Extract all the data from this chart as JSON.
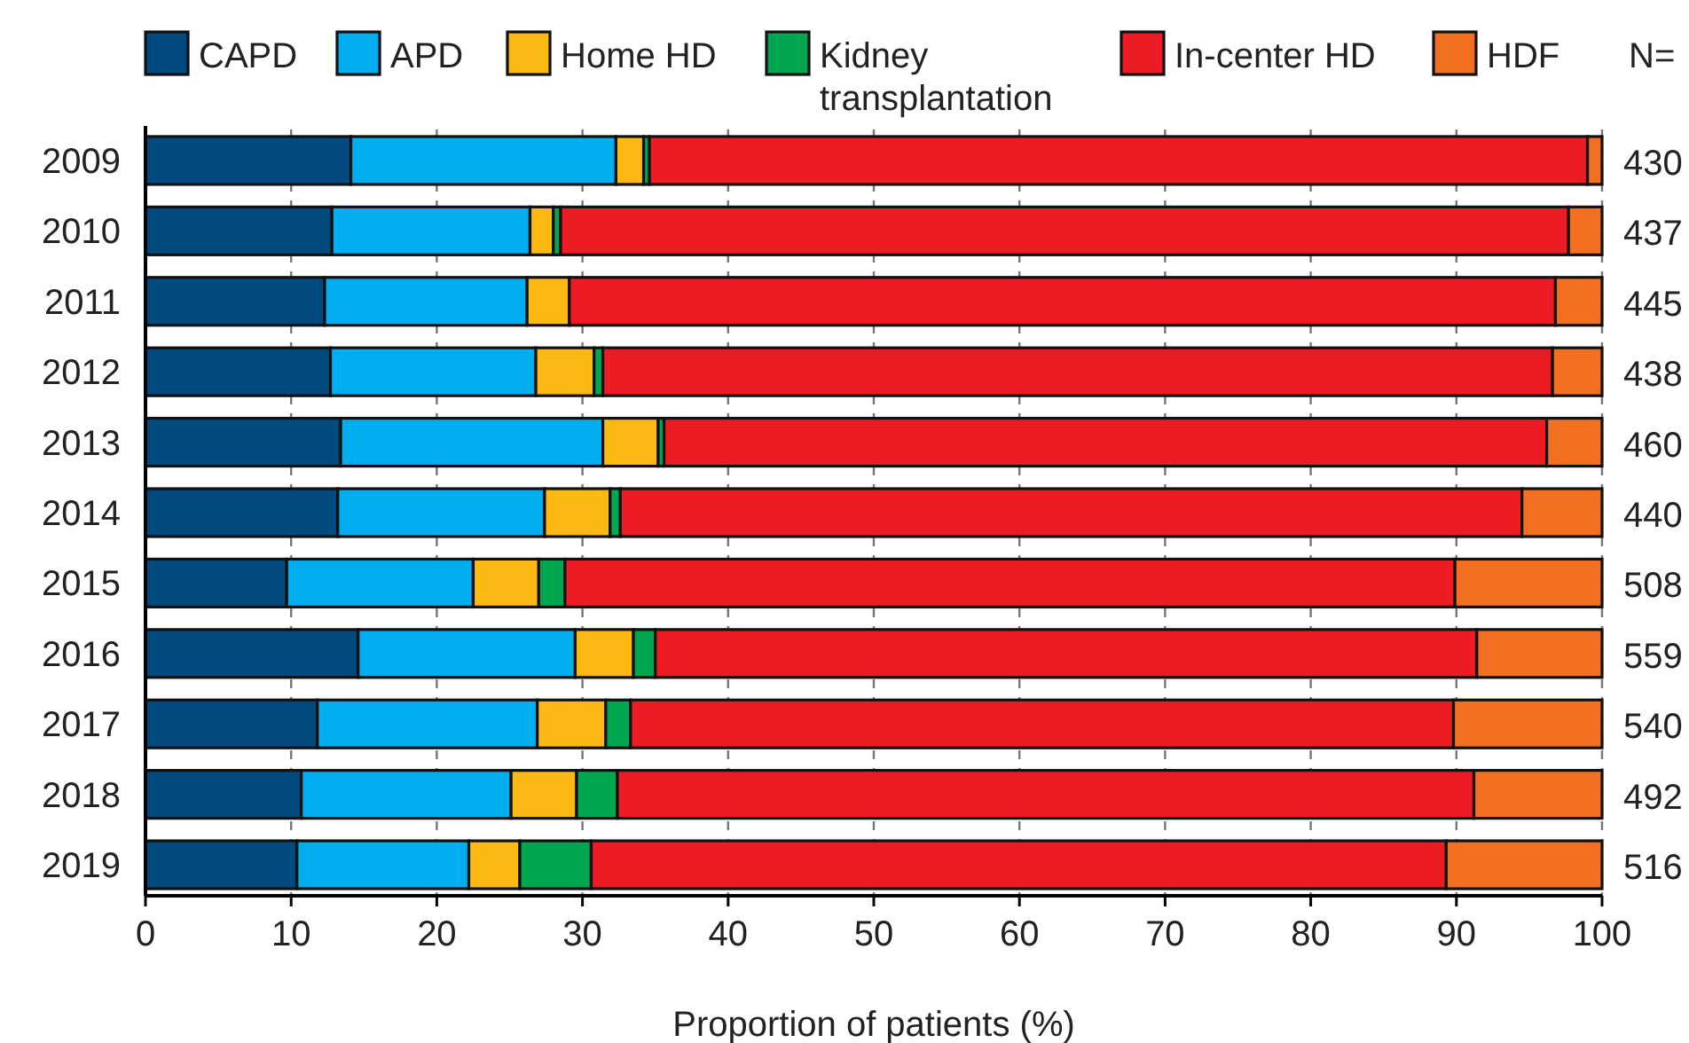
{
  "chart_data": {
    "type": "bar",
    "orientation": "horizontal",
    "stacked": true,
    "xlabel": "Proportion of patients (%)",
    "categories": [
      "2009",
      "2010",
      "2011",
      "2012",
      "2013",
      "2014",
      "2015",
      "2016",
      "2017",
      "2018",
      "2019"
    ],
    "series": [
      {
        "name": "CAPD",
        "color": "#004a80",
        "values": [
          14.1,
          12.8,
          12.3,
          12.7,
          13.4,
          13.2,
          9.7,
          14.6,
          11.8,
          10.7,
          10.4
        ]
      },
      {
        "name": "APD",
        "color": "#00aeef",
        "values": [
          18.2,
          13.6,
          13.9,
          14.1,
          18.0,
          14.2,
          12.8,
          14.9,
          15.1,
          14.4,
          11.8
        ]
      },
      {
        "name": "Home HD",
        "color": "#fdb913",
        "values": [
          1.9,
          1.6,
          2.9,
          4.0,
          3.8,
          4.5,
          4.5,
          4.0,
          4.7,
          4.5,
          3.5
        ]
      },
      {
        "name": "Kidney transplantation",
        "color": "#00a650",
        "values": [
          0.4,
          0.5,
          0,
          0.6,
          0.4,
          0.7,
          1.8,
          1.5,
          1.7,
          2.8,
          4.9
        ]
      },
      {
        "name": "In-center HD",
        "color": "#ed1c24",
        "values": [
          64.4,
          69.2,
          67.7,
          65.2,
          60.6,
          61.9,
          61.1,
          56.4,
          56.5,
          58.8,
          58.7
        ]
      },
      {
        "name": "HDF",
        "color": "#f36f21",
        "values": [
          1.0,
          2.3,
          3.2,
          3.4,
          3.8,
          5.5,
          10.1,
          8.6,
          10.2,
          8.8,
          10.7
        ]
      }
    ],
    "xlim": [
      0,
      100
    ],
    "xticks": [
      0,
      10,
      20,
      30,
      40,
      50,
      60,
      70,
      80,
      90,
      100
    ],
    "grid": "x",
    "legend": "top",
    "annotations": [
      "N=",
      "430",
      "437",
      "445",
      "438",
      "460",
      "440",
      "508",
      "559",
      "540",
      "492",
      "516"
    ]
  }
}
